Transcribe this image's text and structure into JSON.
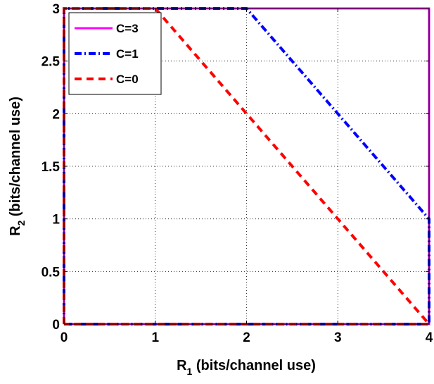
{
  "chart_data": {
    "type": "line",
    "xlabel_main": "R",
    "xlabel_sub": "1",
    "xlabel_unit": " (bits/channel use)",
    "ylabel_main": "R",
    "ylabel_sub": "2",
    "ylabel_unit": " (bits/channel use)",
    "xlim": [
      0,
      4
    ],
    "ylim": [
      0,
      3
    ],
    "xticks": [
      0,
      1,
      2,
      3,
      4
    ],
    "xtick_labels": [
      "0",
      "1",
      "2",
      "3",
      "4"
    ],
    "yticks": [
      0,
      0.5,
      1,
      1.5,
      2,
      2.5,
      3
    ],
    "ytick_labels": [
      "0",
      "0.5",
      "1",
      "1.5",
      "2",
      "2.5",
      "3"
    ],
    "grid": true,
    "legend_position": "top-left",
    "series": [
      {
        "name": "C=3",
        "color": "#ff00ff",
        "dash": "solid",
        "x": [
          0,
          0,
          4,
          4,
          0
        ],
        "y": [
          0,
          3,
          3,
          0,
          0
        ]
      },
      {
        "name": "C=1",
        "color": "#0000ff",
        "dash": "dashdot",
        "x": [
          0,
          0,
          2,
          4,
          4,
          0
        ],
        "y": [
          0,
          3,
          3,
          1,
          0,
          0
        ]
      },
      {
        "name": "C=0",
        "color": "#ff0000",
        "dash": "dashed",
        "x": [
          0,
          0,
          1,
          4,
          0
        ],
        "y": [
          0,
          3,
          3,
          0,
          0
        ]
      }
    ]
  }
}
